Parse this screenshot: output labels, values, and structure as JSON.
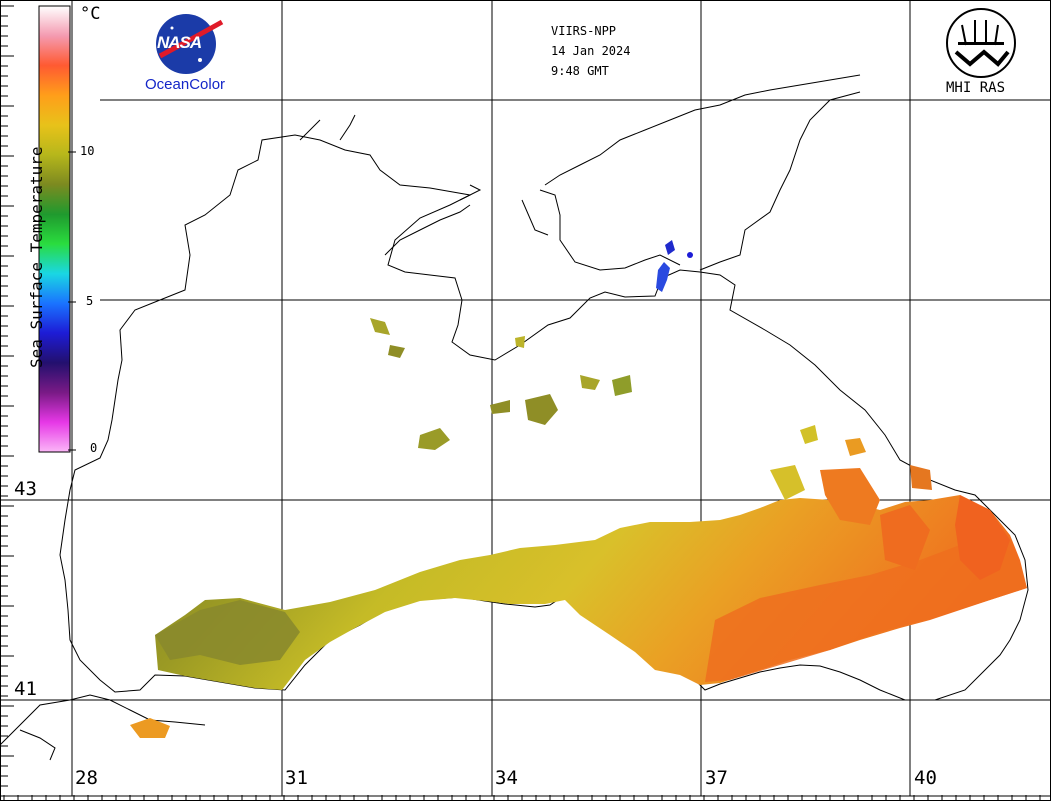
{
  "header": {
    "sensor": "VIIRS-NPP",
    "date": "14 Jan 2024",
    "time": "9:48 GMT"
  },
  "logos": {
    "nasa": "NASA",
    "oceancolor": "OceanColor",
    "mhi": "MHI RAS"
  },
  "colorbar": {
    "title": "Sea Surface Temperature",
    "unit": "°C",
    "ticks": [
      "10",
      "5",
      "0"
    ],
    "colors": [
      "#ffffff",
      "#f49ab0",
      "#ff5a32",
      "#ff9e1a",
      "#e8c21a",
      "#b7b71b",
      "#7c8a20",
      "#1f9a2e",
      "#2adc3e",
      "#1ad7e3",
      "#1a73ff",
      "#1d1cd6",
      "#23106e",
      "#7a1a86",
      "#e637e6",
      "#fbb6f7"
    ]
  },
  "grid": {
    "longitudes": [
      "28",
      "31",
      "34",
      "37",
      "40"
    ],
    "latitudes": [
      "43",
      "41"
    ]
  },
  "palette": {
    "warm": "#f07a20",
    "mid": "#d3c323",
    "olive": "#8f8e26",
    "cold": "#2a4ae0"
  }
}
